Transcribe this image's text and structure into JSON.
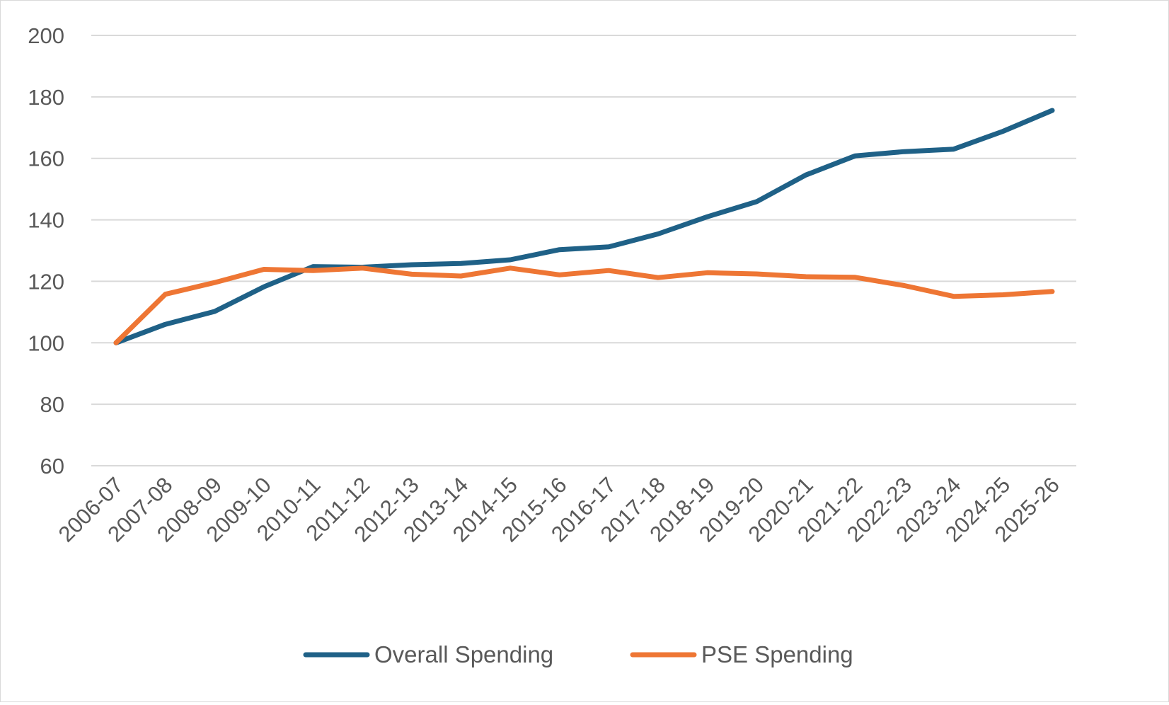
{
  "chart_data": {
    "type": "line",
    "title": "",
    "xlabel": "",
    "ylabel": "",
    "ylim": [
      60,
      200
    ],
    "yticks": [
      60,
      80,
      100,
      120,
      140,
      160,
      180,
      200
    ],
    "grid": true,
    "legend_position": "bottom",
    "categories": [
      "2006-07",
      "2007-08",
      "2008-09",
      "2009-10",
      "2010-11",
      "2011-12",
      "2012-13",
      "2013-14",
      "2014-15",
      "2015-16",
      "2016-17",
      "2017-18",
      "2018-19",
      "2019-20",
      "2020-21",
      "2021-22",
      "2022-23",
      "2023-24",
      "2024-25",
      "2025-26"
    ],
    "series": [
      {
        "name": "Overall Spending",
        "color": "#1f6187",
        "values": [
          100,
          106,
          110.2,
          118.2,
          124.8,
          124.6,
          125.4,
          125.8,
          127,
          130.3,
          131.2,
          135.4,
          141,
          145.9,
          154.6,
          160.8,
          162.2,
          163,
          168.8,
          175.6
        ]
      },
      {
        "name": "PSE Spending",
        "color": "#ee7634",
        "values": [
          100,
          115.8,
          119.6,
          123.9,
          123.5,
          124.3,
          122.3,
          121.7,
          124.3,
          122.1,
          123.5,
          121.2,
          122.8,
          122.4,
          121.5,
          121.3,
          118.6,
          115.1,
          115.6,
          116.7
        ]
      }
    ]
  }
}
